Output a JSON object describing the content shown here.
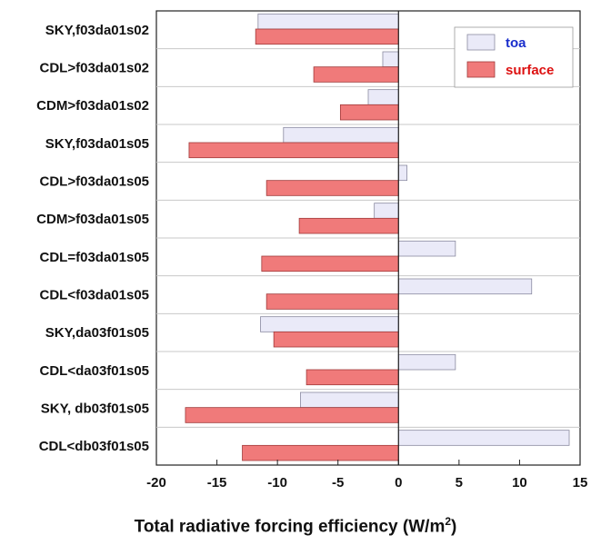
{
  "chart_data": {
    "type": "bar",
    "orientation": "horizontal",
    "categories": [
      "SKY,f03da01s02",
      "CDL>f03da01s02",
      "CDM>f03da01s02",
      "SKY,f03da01s05",
      "CDL>f03da01s05",
      "CDM>f03da01s05",
      "CDL=f03da01s05",
      "CDL<f03da01s05",
      "SKY,da03f01s05",
      "CDL<da03f01s05",
      "SKY, db03f01s05",
      "CDL<db03f01s05"
    ],
    "series": [
      {
        "name": "toa",
        "color": "#eaeaf8",
        "stroke": "#8a8aa0",
        "values": [
          -11.6,
          -1.3,
          -2.5,
          -9.5,
          0.7,
          -2.0,
          4.7,
          11.0,
          -11.4,
          4.7,
          -8.1,
          14.1
        ]
      },
      {
        "name": "surface",
        "color": "#f07a7a",
        "stroke": "#a03a3a",
        "values": [
          -11.8,
          -7.0,
          -4.8,
          -17.3,
          -10.9,
          -8.2,
          -11.3,
          -10.9,
          -10.3,
          -7.6,
          -17.6,
          -12.9
        ]
      }
    ],
    "xlim": [
      -20,
      15
    ],
    "xticks": [
      "-20",
      "-15",
      "-10",
      "-5",
      "0",
      "5",
      "10",
      "15"
    ],
    "xlabel": "Total radiative forcing efficiency (W/m",
    "xlabel_superscript": "2",
    "xlabel_close": ")",
    "ylabel": "",
    "legend_position": "top-right",
    "legend_text_colors": {
      "toa": "#1a2ecc",
      "surface": "#dd1111"
    },
    "grid": "horizontal separators between categories"
  }
}
